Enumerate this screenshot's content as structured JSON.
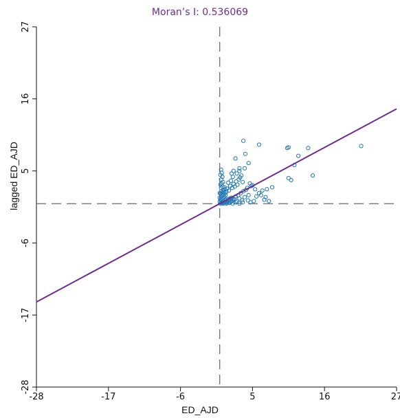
{
  "chart_data": {
    "type": "scatter",
    "title": "Moran’s I: 0.536069",
    "xlabel": "ED_AJD",
    "ylabel": "lagged ED_AJD",
    "xlim": [
      -28,
      27
    ],
    "ylim": [
      -28,
      27
    ],
    "x_ticks": [
      -28,
      -17,
      -6,
      5,
      16,
      27
    ],
    "y_ticks": [
      -28,
      -17,
      -6,
      5,
      16,
      27
    ],
    "reference_lines": {
      "x": 0,
      "y": 0
    },
    "regression_line": {
      "slope": 0.536069,
      "intercept": 0
    },
    "colors": {
      "points": "#1f77b4",
      "line": "#6b2c91",
      "title": "#6b2c91",
      "reference": "#444444"
    },
    "points": [
      [
        0.1,
        0.0
      ],
      [
        0.2,
        0.1
      ],
      [
        0.3,
        0.2
      ],
      [
        0.4,
        0.3
      ],
      [
        0.5,
        0.1
      ],
      [
        0.6,
        0.4
      ],
      [
        0.7,
        0.2
      ],
      [
        0.8,
        0.5
      ],
      [
        0.9,
        0.3
      ],
      [
        1.0,
        0.6
      ],
      [
        1.1,
        0.1
      ],
      [
        1.2,
        0.4
      ],
      [
        1.3,
        0.7
      ],
      [
        1.4,
        0.2
      ],
      [
        1.5,
        0.5
      ],
      [
        1.6,
        0.8
      ],
      [
        1.7,
        0.3
      ],
      [
        1.8,
        0.9
      ],
      [
        1.9,
        0.4
      ],
      [
        2.0,
        0.6
      ],
      [
        0.1,
        0.6
      ],
      [
        0.2,
        1.0
      ],
      [
        0.3,
        0.8
      ],
      [
        0.4,
        1.2
      ],
      [
        0.5,
        0.9
      ],
      [
        0.6,
        1.4
      ],
      [
        0.7,
        1.1
      ],
      [
        0.8,
        1.6
      ],
      [
        0.9,
        1.3
      ],
      [
        1.0,
        1.8
      ],
      [
        0.1,
        1.5
      ],
      [
        0.2,
        1.9
      ],
      [
        0.3,
        1.7
      ],
      [
        0.5,
        2.1
      ],
      [
        0.6,
        1.8
      ],
      [
        0.8,
        2.2
      ],
      [
        0.2,
        2.4
      ],
      [
        0.4,
        2.6
      ],
      [
        0.7,
        2.5
      ],
      [
        0.1,
        2.9
      ],
      [
        0.3,
        3.1
      ],
      [
        0.5,
        3.3
      ],
      [
        0.2,
        3.7
      ],
      [
        0.4,
        4.1
      ],
      [
        0.1,
        4.4
      ],
      [
        0.3,
        4.7
      ],
      [
        0.2,
        5.2
      ],
      [
        0.0,
        0.3
      ],
      [
        0.0,
        0.9
      ],
      [
        0.0,
        1.6
      ],
      [
        2.2,
        0.7
      ],
      [
        2.4,
        1.1
      ],
      [
        2.6,
        0.4
      ],
      [
        2.8,
        1.3
      ],
      [
        3.0,
        0.8
      ],
      [
        3.2,
        1.6
      ],
      [
        3.4,
        0.5
      ],
      [
        3.6,
        1.9
      ],
      [
        3.8,
        1.0
      ],
      [
        4.0,
        2.1
      ],
      [
        1.1,
        2.3
      ],
      [
        1.4,
        2.0
      ],
      [
        1.6,
        2.7
      ],
      [
        1.9,
        2.4
      ],
      [
        2.1,
        3.0
      ],
      [
        2.3,
        2.6
      ],
      [
        2.5,
        3.4
      ],
      [
        2.7,
        2.9
      ],
      [
        2.9,
        3.7
      ],
      [
        3.1,
        4.0
      ],
      [
        3.3,
        4.3
      ],
      [
        3.5,
        3.3
      ],
      [
        1.3,
        3.2
      ],
      [
        1.7,
        3.5
      ],
      [
        2.0,
        4.1
      ],
      [
        2.6,
        4.6
      ],
      [
        3.0,
        5.0
      ],
      [
        3.8,
        5.4
      ],
      [
        4.2,
        2.4
      ],
      [
        4.4,
        1.3
      ],
      [
        4.6,
        3.1
      ],
      [
        4.8,
        2.7
      ],
      [
        5.0,
        2.8
      ],
      [
        5.4,
        2.2
      ],
      [
        4.3,
        0.5
      ],
      [
        4.7,
        0.2
      ],
      [
        5.2,
        0.4
      ],
      [
        5.6,
        1.1
      ],
      [
        3.9,
        7.6
      ],
      [
        2.4,
        6.9
      ],
      [
        4.4,
        6.2
      ],
      [
        3.0,
        5.4
      ],
      [
        1.8,
        4.6
      ],
      [
        3.6,
        9.6
      ],
      [
        2.1,
        5.0
      ],
      [
        6.0,
        9.0
      ],
      [
        6.3,
        1.3
      ],
      [
        6.5,
        2.0
      ],
      [
        7.0,
        1.0
      ],
      [
        7.5,
        0.4
      ],
      [
        8.0,
        2.5
      ],
      [
        6.0,
        1.6
      ],
      [
        6.8,
        0.6
      ],
      [
        7.2,
        2.2
      ],
      [
        10.5,
        8.6
      ],
      [
        10.3,
        8.5
      ],
      [
        12.0,
        7.3
      ],
      [
        11.4,
        5.9
      ],
      [
        10.5,
        3.9
      ],
      [
        10.9,
        3.6
      ],
      [
        13.5,
        8.5
      ],
      [
        14.2,
        4.3
      ],
      [
        21.6,
        8.8
      ],
      [
        1.0,
        0.0
      ],
      [
        1.5,
        0.1
      ],
      [
        2.5,
        0.2
      ],
      [
        3.0,
        0.0
      ],
      [
        0.5,
        0.0
      ],
      [
        2.0,
        0.0
      ],
      [
        3.5,
        0.2
      ]
    ]
  }
}
